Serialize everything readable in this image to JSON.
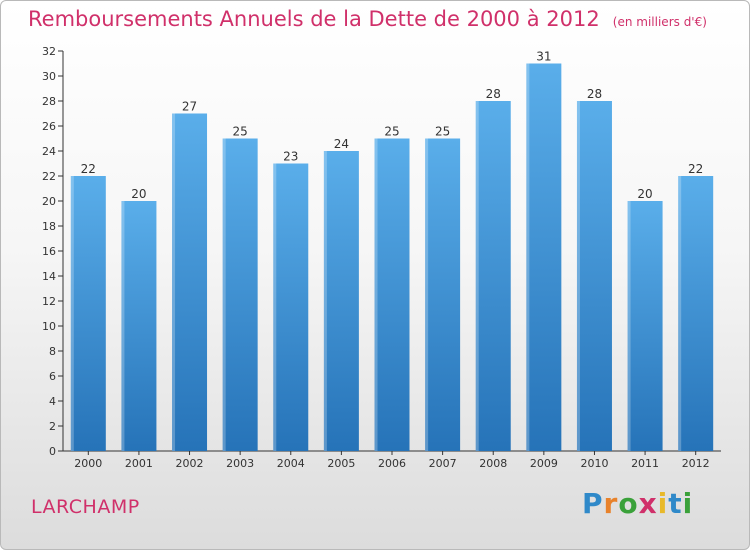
{
  "chart_data": {
    "type": "bar",
    "title": "Remboursements Annuels de la Dette de 2000 à 2012",
    "unit_note": "(en milliers d'€)",
    "categories": [
      "2000",
      "2001",
      "2002",
      "2003",
      "2004",
      "2005",
      "2006",
      "2007",
      "2008",
      "2009",
      "2010",
      "2011",
      "2012"
    ],
    "values": [
      22,
      20,
      27,
      25,
      23,
      24,
      25,
      25,
      28,
      31,
      28,
      20,
      22
    ],
    "ylim": [
      0,
      32
    ],
    "yticks": [
      0,
      2,
      4,
      6,
      8,
      10,
      12,
      14,
      16,
      18,
      20,
      22,
      24,
      26,
      28,
      30,
      32
    ],
    "grid": false,
    "xlabel": "",
    "ylabel": "",
    "bar_color": "#3a8fd6",
    "bar_color_light": "#5aaeea",
    "bar_color_dark": "#2673b8"
  },
  "footer": {
    "commune": "LARCHAMP",
    "brand_letters": [
      "P",
      "r",
      "o",
      "x",
      "i",
      "t",
      "i"
    ],
    "brand_colors": [
      "#2f89c9",
      "#e8822b",
      "#3aa13a",
      "#d0306a",
      "#e8b92a",
      "#2f89c9",
      "#3aa13a"
    ]
  },
  "colors": {
    "title": "#d0306a",
    "axis": "#333333",
    "frame_border": "#b9b9b9"
  }
}
